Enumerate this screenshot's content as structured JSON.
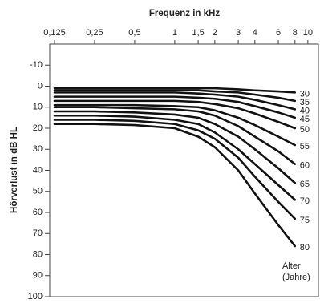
{
  "chart_data": {
    "type": "line",
    "title": "Frequenz in kHz",
    "y_label": "Hörverlust in dB HL",
    "annotations": [
      "Alter",
      "(Jahre)"
    ],
    "x": [
      0.125,
      0.25,
      0.5,
      1,
      1.5,
      2,
      3,
      4,
      6,
      8
    ],
    "x_scale": "log",
    "xlim": [
      0.115,
      12
    ],
    "xticks": [
      {
        "value": 0.125,
        "label": "0,125"
      },
      {
        "value": 0.25,
        "label": "0,25"
      },
      {
        "value": 0.5,
        "label": "0,5"
      },
      1,
      {
        "value": 1.5,
        "label": "1,5"
      },
      2,
      3,
      4,
      6,
      8,
      10
    ],
    "ylim": [
      -20,
      100
    ],
    "y_inverted": true,
    "yticks": [
      -10,
      0,
      10,
      20,
      30,
      40,
      50,
      60,
      70,
      80,
      90,
      100
    ],
    "series": [
      {
        "name": "30",
        "color": "#111111",
        "values": [
          1,
          1,
          1,
          1,
          1,
          1,
          1.5,
          2,
          2.5,
          3
        ]
      },
      {
        "name": "35",
        "color": "#111111",
        "values": [
          2,
          2,
          2,
          2,
          2,
          2.5,
          3,
          4,
          5.5,
          7
        ]
      },
      {
        "name": "40",
        "color": "#111111",
        "values": [
          3,
          3,
          3,
          3,
          3.5,
          4,
          5,
          6.5,
          9,
          11
        ]
      },
      {
        "name": "45",
        "color": "#111111",
        "values": [
          5,
          5,
          5,
          5,
          5.5,
          6,
          7.5,
          9.5,
          12.5,
          15
        ]
      },
      {
        "name": "50",
        "color": "#111111",
        "values": [
          7,
          7,
          7,
          7,
          7.5,
          8.5,
          10.5,
          13,
          17,
          20
        ]
      },
      {
        "name": "55",
        "color": "#111111",
        "values": [
          9,
          9,
          9,
          9.5,
          10,
          11.5,
          15,
          18.5,
          24,
          28
        ]
      },
      {
        "name": "60",
        "color": "#111111",
        "values": [
          10,
          10,
          10.5,
          11,
          12,
          14,
          19,
          24,
          31,
          37
        ]
      },
      {
        "name": "65",
        "color": "#111111",
        "values": [
          12,
          12,
          12.5,
          13.5,
          15,
          18,
          24,
          30,
          39,
          46
        ]
      },
      {
        "name": "70",
        "color": "#111111",
        "values": [
          14,
          14,
          14.5,
          16,
          18,
          22,
          30,
          37,
          47,
          54
        ]
      },
      {
        "name": "75",
        "color": "#111111",
        "values": [
          16,
          16,
          16.5,
          18,
          21,
          25,
          34,
          43,
          55,
          63
        ]
      },
      {
        "name": "80",
        "color": "#111111",
        "values": [
          18,
          18,
          18.5,
          20,
          24,
          29,
          40,
          51,
          66,
          76
        ]
      }
    ]
  }
}
